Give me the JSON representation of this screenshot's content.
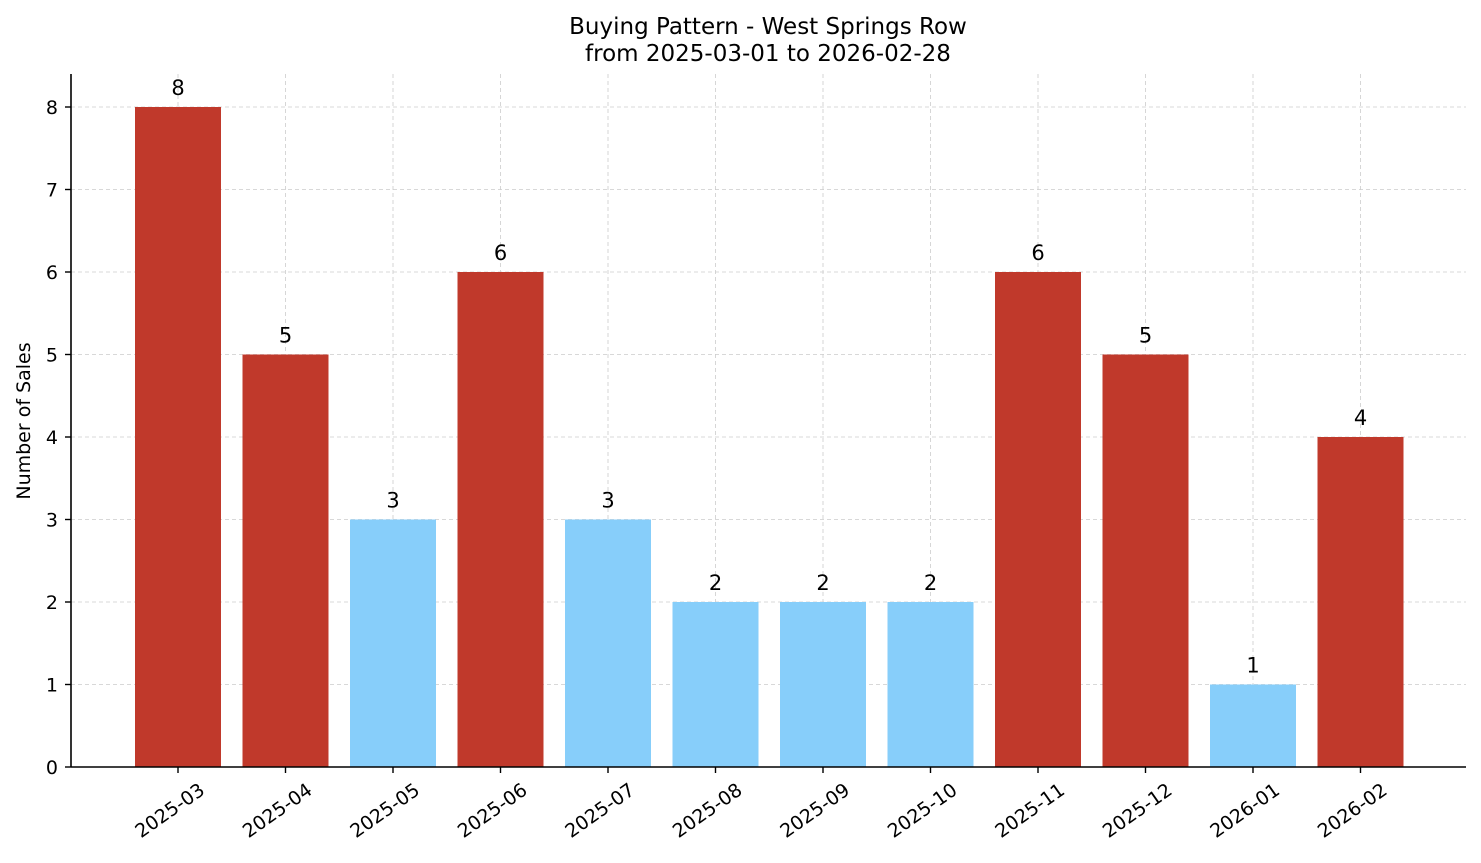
{
  "chart_data": {
    "type": "bar",
    "title": "Buying Pattern - West Springs Row",
    "subtitle": "from 2025-03-01 to 2026-02-28",
    "xlabel": "",
    "ylabel": "Number of Sales",
    "categories": [
      "2025-03",
      "2025-04",
      "2025-05",
      "2025-06",
      "2025-07",
      "2025-08",
      "2025-09",
      "2025-10",
      "2025-11",
      "2025-12",
      "2026-01",
      "2026-02"
    ],
    "values": [
      8,
      5,
      3,
      6,
      3,
      2,
      2,
      2,
      6,
      5,
      1,
      4
    ],
    "bar_colors": [
      "#c0392b",
      "#c0392b",
      "#87cefa",
      "#c0392b",
      "#87cefa",
      "#87cefa",
      "#87cefa",
      "#87cefa",
      "#c0392b",
      "#c0392b",
      "#87cefa",
      "#c0392b"
    ],
    "yticks": [
      "0",
      "1",
      "2",
      "3",
      "4",
      "5",
      "6",
      "7",
      "8"
    ],
    "ylim": [
      0,
      8.4
    ],
    "grid": true,
    "legend": "none",
    "data_labels": true
  }
}
